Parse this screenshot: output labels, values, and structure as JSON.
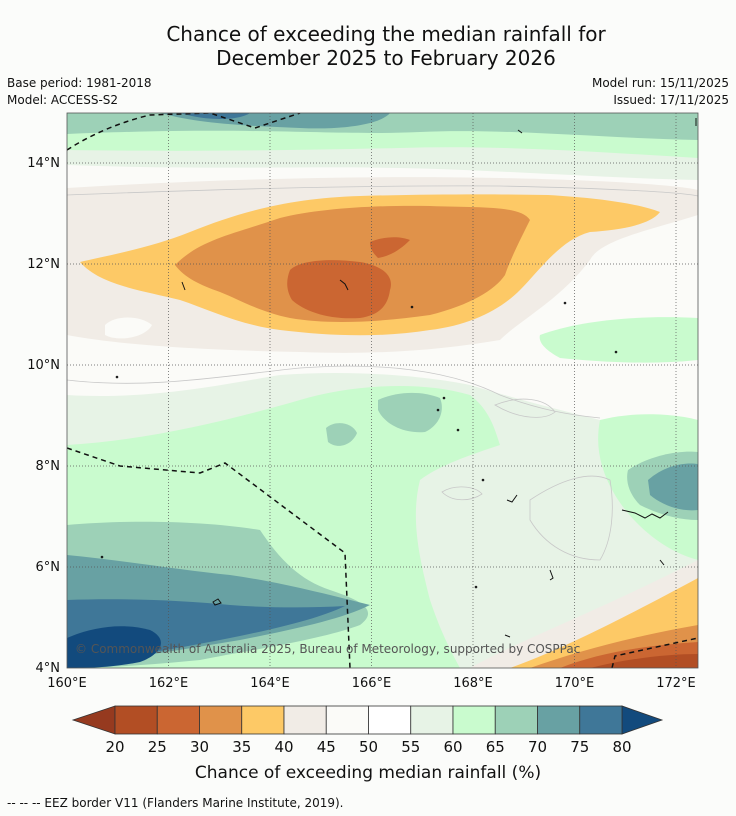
{
  "title": {
    "line1": "Chance of exceeding the median rainfall for",
    "line2": "December 2025 to February 2026"
  },
  "meta": {
    "base_period": "Base period: 1981-2018",
    "model": "Model: ACCESS-S2",
    "model_run": "Model run: 15/11/2025",
    "issued": "Issued: 17/11/2025"
  },
  "map": {
    "lon_range": [
      160,
      172.5
    ],
    "lat_range": [
      4,
      15
    ],
    "lon_ticks": [
      "160°E",
      "162°E",
      "164°E",
      "166°E",
      "168°E",
      "170°E",
      "172°E"
    ],
    "lat_ticks": [
      "4°N",
      "6°N",
      "8°N",
      "10°N",
      "12°N",
      "14°N"
    ],
    "copyright": "© Commonwealth of Australia 2025, Bureau of Meteorology, supported by COSPPac"
  },
  "colorbar": {
    "ticks": [
      "20",
      "25",
      "30",
      "35",
      "40",
      "45",
      "50",
      "55",
      "60",
      "65",
      "70",
      "75",
      "80"
    ],
    "colors": [
      "#b24e24",
      "#cb6632",
      "#e0924a",
      "#fdc966",
      "#f1ece6",
      "#fbfbf8",
      "#ffffff",
      "#e7f3e6",
      "#c9fbce",
      "#9dd1b7",
      "#68a1a3",
      "#3f7798"
    ],
    "under_color": "#963a1f",
    "over_color": "#124a7d",
    "label": "Chance of exceeding median rainfall (%)"
  },
  "footnote": "-- -- -- EEZ border V11 (Flanders Marine Institute, 2019)."
}
